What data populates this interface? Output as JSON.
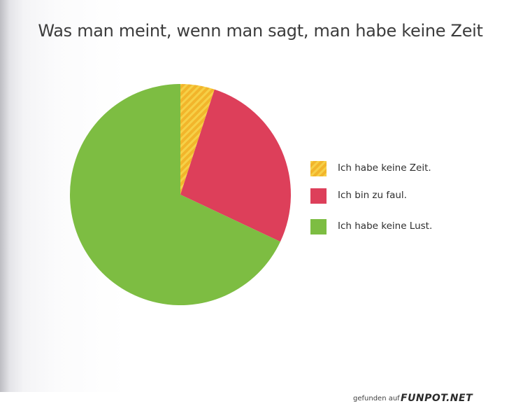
{
  "page": {
    "watermark_prefix": "gefunden auf",
    "watermark_brand": "FUNPOT.NET"
  },
  "chart_data": {
    "type": "pie",
    "title": "Was man meint, wenn man sagt, man habe keine Zeit",
    "slices": [
      {
        "label": "Ich habe keine Zeit.",
        "value": 5,
        "color": "#f2b52b"
      },
      {
        "label": "Ich bin zu faul.",
        "value": 27,
        "color": "#dd3f5a"
      },
      {
        "label": "Ich habe keine Lust.",
        "value": 68,
        "color": "#7dbd42"
      }
    ],
    "start_angle": "12 o'clock",
    "direction": "clockwise",
    "legend_position": "right"
  }
}
